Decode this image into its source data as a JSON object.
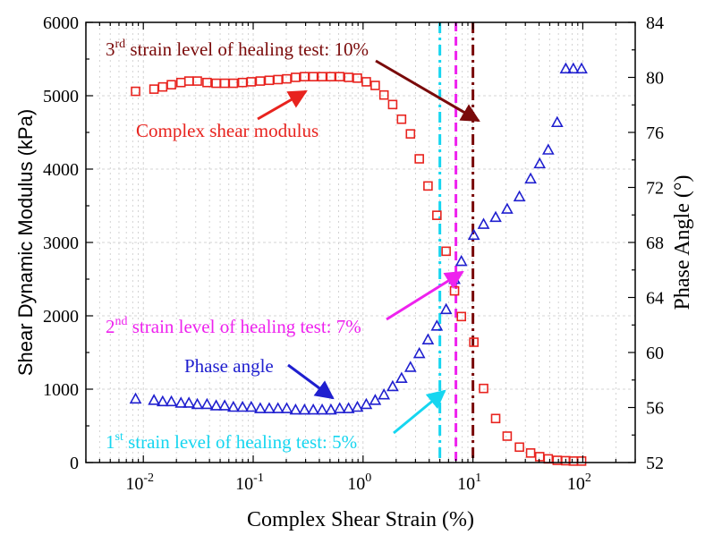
{
  "chart_data": {
    "type": "scatter",
    "x_scale": "log",
    "xlabel": "Complex Shear Strain (%)",
    "ylabel_left": "Shear Dynamic Modulus (kPa)",
    "ylabel_right": "Phase Angle (°)",
    "xlim": [
      0.003,
      300
    ],
    "ylim_left": [
      0,
      6000
    ],
    "ylim_right": [
      52,
      84
    ],
    "grid": true,
    "x_ticks": [
      {
        "base": "10",
        "exp": "-2",
        "value": 0.01
      },
      {
        "base": "10",
        "exp": "-1",
        "value": 0.1
      },
      {
        "base": "10",
        "exp": "0",
        "value": 1
      },
      {
        "base": "10",
        "exp": "1",
        "value": 10
      },
      {
        "base": "10",
        "exp": "2",
        "value": 100
      }
    ],
    "y_ticks_left": [
      "0",
      "1000",
      "2000",
      "3000",
      "4000",
      "5000",
      "6000"
    ],
    "y_ticks_right": [
      "52",
      "56",
      "60",
      "64",
      "68",
      "72",
      "76",
      "80",
      "84"
    ],
    "series": [
      {
        "name": "Complex shear modulus",
        "axis": "left",
        "marker": "square",
        "color": "#e8231e",
        "x": [
          0.0085,
          0.0125,
          0.015,
          0.018,
          0.022,
          0.026,
          0.031,
          0.038,
          0.046,
          0.055,
          0.066,
          0.08,
          0.096,
          0.116,
          0.14,
          0.168,
          0.202,
          0.243,
          0.293,
          0.352,
          0.424,
          0.51,
          0.613,
          0.738,
          0.888,
          1.07,
          1.29,
          1.55,
          1.86,
          2.24,
          2.7,
          3.25,
          3.9,
          4.7,
          5.7,
          6.8,
          7.85,
          10.2,
          12.5,
          16.1,
          20.5,
          26.5,
          33.5,
          40.5,
          48.5,
          58.5,
          70.0,
          82.0,
          97.5
        ],
        "values": [
          5060,
          5090,
          5120,
          5150,
          5180,
          5200,
          5200,
          5180,
          5170,
          5170,
          5170,
          5180,
          5190,
          5200,
          5210,
          5220,
          5230,
          5250,
          5260,
          5260,
          5260,
          5260,
          5260,
          5250,
          5240,
          5190,
          5140,
          5010,
          4880,
          4680,
          4480,
          4140,
          3770,
          3370,
          2880,
          2340,
          1990,
          1640,
          1010,
          600,
          360,
          210,
          130,
          80,
          50,
          30,
          25,
          20,
          20
        ]
      },
      {
        "name": "Phase angle",
        "axis": "right",
        "marker": "triangle",
        "color": "#1f1fcf",
        "x": [
          0.0085,
          0.0125,
          0.015,
          0.018,
          0.022,
          0.026,
          0.031,
          0.038,
          0.046,
          0.055,
          0.066,
          0.08,
          0.096,
          0.116,
          0.14,
          0.168,
          0.202,
          0.243,
          0.293,
          0.352,
          0.424,
          0.51,
          0.613,
          0.738,
          0.888,
          1.07,
          1.29,
          1.55,
          1.86,
          2.24,
          2.7,
          3.25,
          3.9,
          4.7,
          5.7,
          6.8,
          7.85,
          10.2,
          12.5,
          16.1,
          20.5,
          26.5,
          33.5,
          40.5,
          48.5,
          58.5,
          70.0,
          82.0,
          97.5
        ],
        "values": [
          56.6,
          56.5,
          56.4,
          56.4,
          56.3,
          56.3,
          56.2,
          56.2,
          56.1,
          56.1,
          56.0,
          56.0,
          56.0,
          55.9,
          55.9,
          55.9,
          55.9,
          55.8,
          55.8,
          55.8,
          55.8,
          55.8,
          55.9,
          55.9,
          56.0,
          56.2,
          56.5,
          56.9,
          57.5,
          58.1,
          58.9,
          59.9,
          60.9,
          61.9,
          63.1,
          65.3,
          66.6,
          68.5,
          69.3,
          69.8,
          70.4,
          71.3,
          72.6,
          73.7,
          74.7,
          76.7,
          80.6,
          80.6,
          80.6
        ]
      }
    ],
    "reference_lines": [
      {
        "x": 5,
        "color": "#16d6f0",
        "style": "dashdot",
        "label_pre": "1",
        "label_sup": "st",
        "label_post": " strain level of healing test: 5%"
      },
      {
        "x": 7,
        "color": "#ee22ee",
        "style": "dashed",
        "label_pre": "2",
        "label_sup": "nd",
        "label_post": " strain level of healing test: 7%"
      },
      {
        "x": 10,
        "color": "#7a0a0a",
        "style": "dashdot",
        "label_pre": "3",
        "label_sup": "rd",
        "label_post": " strain level of healing test: 10%"
      }
    ],
    "annotations": [
      {
        "text": "Complex shear modulus",
        "color": "#e8231e"
      },
      {
        "text": "Phase angle",
        "color": "#1f1fcf"
      }
    ]
  }
}
